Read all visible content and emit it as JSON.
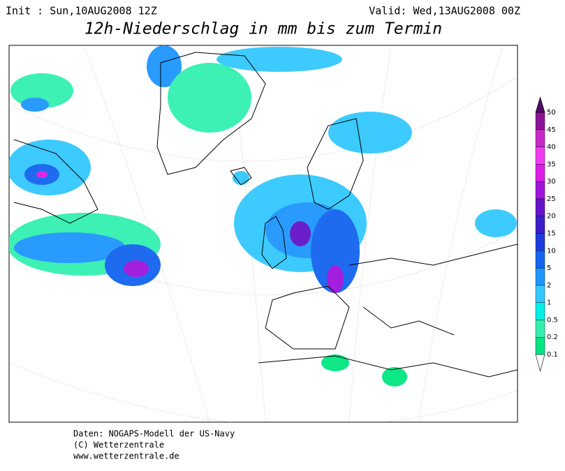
{
  "header": {
    "init": "Init : Sun,10AUG2008 12Z",
    "valid": "Valid: Wed,13AUG2008 00Z",
    "title": "12h-Niederschlag in mm bis zum Termin"
  },
  "legend": {
    "levels": [
      0.1,
      0.2,
      0.5,
      1,
      2,
      5,
      10,
      15,
      20,
      25,
      30,
      35,
      40,
      45,
      50
    ],
    "colors": [
      "#00e680",
      "#33f0b0",
      "#00f0e6",
      "#33c8ff",
      "#1e96ff",
      "#1464f0",
      "#1e3cdc",
      "#3c1ec8",
      "#6414c8",
      "#a014dc",
      "#dc1ee6",
      "#f03cf0",
      "#c828c8",
      "#8c1496",
      "#500a64"
    ]
  },
  "footer": [
    "Daten: NOGAPS-Modell der US-Navy",
    "(C) Wetterzentrale",
    "www.wetterzentrale.de"
  ]
}
